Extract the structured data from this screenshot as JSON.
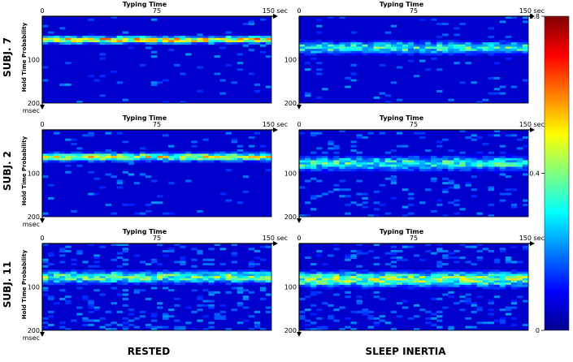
{
  "chart_data": {
    "type": "heatmap",
    "x_axis": {
      "label": "Typing Time",
      "ticks": [
        "0",
        "75",
        "150 sec"
      ],
      "range": [
        0,
        150
      ],
      "unit": "sec",
      "position": "top"
    },
    "y_axis": {
      "label": "Hold Time Probability",
      "ticks": [
        "100",
        "200"
      ],
      "unit_label": "msec",
      "range": [
        0,
        200
      ],
      "unit": "msec"
    },
    "colorbar": {
      "min": 0,
      "max": 0.8,
      "ticks": [
        "0.8",
        "0.4",
        "0"
      ],
      "colormap": "jet"
    },
    "columns": [
      "RESTED",
      "SLEEP INERTIA"
    ],
    "rows": [
      "SUBJ. 7",
      "SUBJ. 2",
      "SUBJ. 11"
    ],
    "panels": [
      {
        "subject": "SUBJ. 7",
        "condition": "RESTED",
        "band_center_msec": 52,
        "band_spread_msec": 10,
        "peak": 0.7,
        "scatter": 0.05
      },
      {
        "subject": "SUBJ. 7",
        "condition": "SLEEP INERTIA",
        "band_center_msec": 70,
        "band_spread_msec": 18,
        "peak": 0.45,
        "scatter": 0.06
      },
      {
        "subject": "SUBJ. 2",
        "condition": "RESTED",
        "band_center_msec": 60,
        "band_spread_msec": 12,
        "peak": 0.6,
        "scatter": 0.06
      },
      {
        "subject": "SUBJ. 2",
        "condition": "SLEEP INERTIA",
        "band_center_msec": 75,
        "band_spread_msec": 20,
        "peak": 0.45,
        "scatter": 0.12
      },
      {
        "subject": "SUBJ. 11",
        "condition": "RESTED",
        "band_center_msec": 75,
        "band_spread_msec": 18,
        "peak": 0.5,
        "scatter": 0.18
      },
      {
        "subject": "SUBJ. 11",
        "condition": "SLEEP INERTIA",
        "band_center_msec": 80,
        "band_spread_msec": 22,
        "peak": 0.55,
        "scatter": 0.2
      }
    ]
  }
}
